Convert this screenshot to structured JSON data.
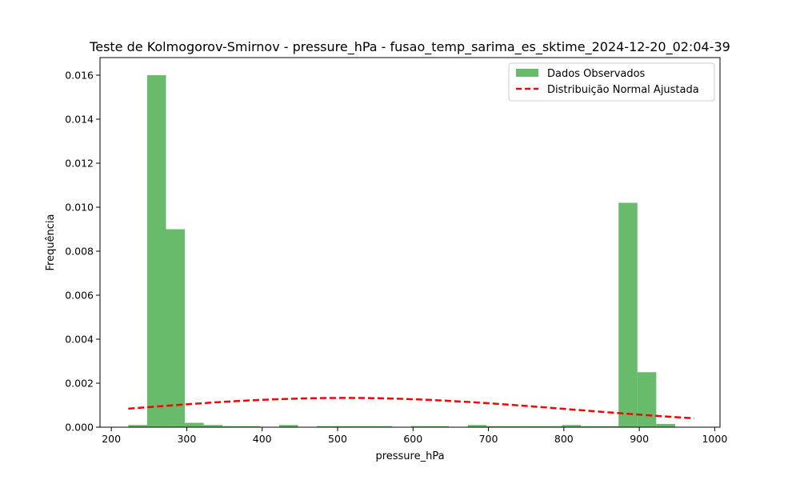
{
  "chart_data": {
    "type": "bar",
    "title": "Teste de Kolmogorov-Smirnov - pressure_hPa - fusao_temp_sarima_es_sktime_2024-12-20_02:04-39",
    "xlabel": "pressure_hPa",
    "ylabel": "Frequência",
    "xlim": [
      185,
      1007
    ],
    "ylim": [
      0,
      0.0168
    ],
    "xticks": [
      200,
      300,
      400,
      500,
      600,
      700,
      800,
      900,
      1000
    ],
    "yticks": [
      0.0,
      0.002,
      0.004,
      0.006,
      0.008,
      0.01,
      0.012,
      0.014,
      0.016
    ],
    "ytick_labels": [
      "0.000",
      "0.002",
      "0.004",
      "0.006",
      "0.008",
      "0.010",
      "0.012",
      "0.014",
      "0.016"
    ],
    "grid": false,
    "legend_position": "top-right",
    "histogram": {
      "name": "Dados Observados",
      "color": "#4caf50",
      "bin_start": 222.5,
      "bin_width": 25,
      "values": [
        0.0001,
        0.016,
        0.009,
        0.0002,
        0.0001,
        5e-05,
        5e-05,
        0.0,
        0.0001,
        0.0,
        5e-05,
        5e-05,
        5e-05,
        5e-05,
        0.0,
        5e-05,
        5e-05,
        0.0,
        0.0001,
        5e-05,
        5e-05,
        5e-05,
        5e-05,
        0.0001,
        5e-05,
        5e-05,
        0.0102,
        0.0025,
        0.00015
      ]
    },
    "normal_fit": {
      "name": "Distribuição Normal Ajustada",
      "color": "#ff0000",
      "mean": 510,
      "std": 300,
      "peak_density": 0.00133,
      "x_range": [
        222.5,
        972.5
      ]
    }
  }
}
